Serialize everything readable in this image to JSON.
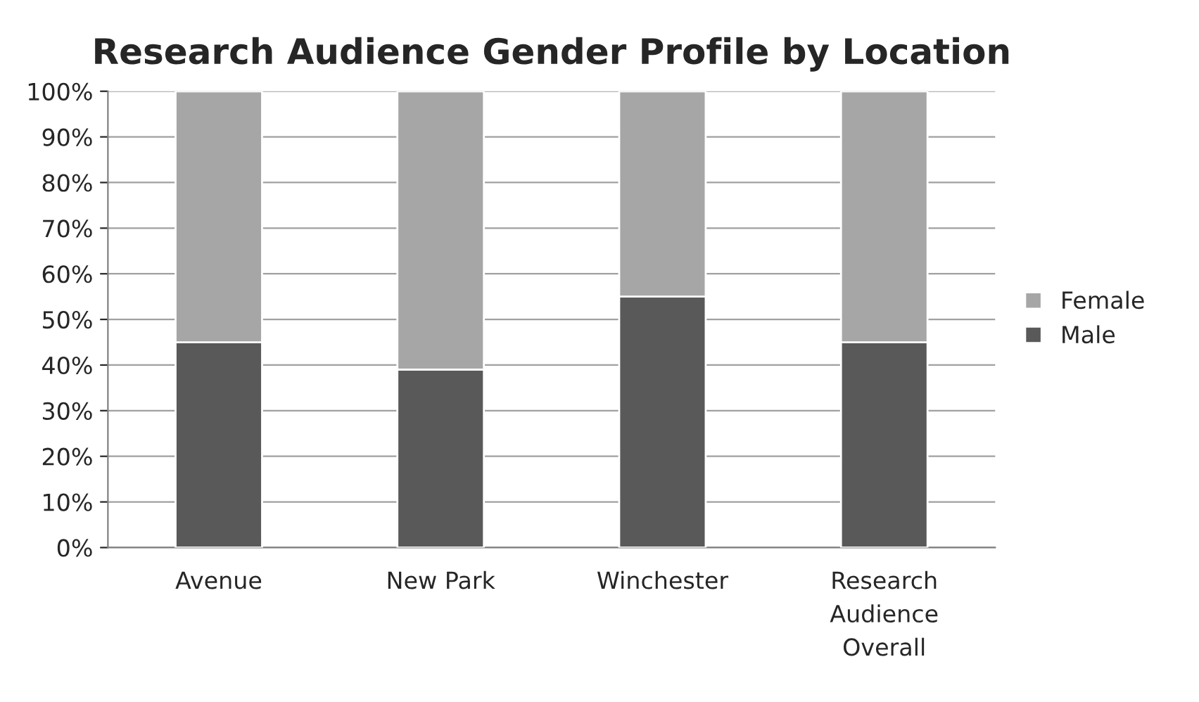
{
  "chart_data": {
    "type": "bar",
    "title": "Research Audience Gender Profile by Location",
    "categories": [
      "Avenue",
      "New Park",
      "Winchester",
      "Research\nAudience\nOverall"
    ],
    "stacked": true,
    "series": [
      {
        "name": "Male",
        "color": "#595959",
        "values": [
          45,
          39,
          55,
          45
        ]
      },
      {
        "name": "Female",
        "color": "#a6a6a6",
        "values": [
          55,
          61,
          45,
          55
        ]
      }
    ],
    "ylim": [
      0,
      100
    ],
    "yticks": [
      {
        "value": 0,
        "label": "0%"
      },
      {
        "value": 10,
        "label": "10%"
      },
      {
        "value": 20,
        "label": "20%"
      },
      {
        "value": 30,
        "label": "30%"
      },
      {
        "value": 40,
        "label": "40%"
      },
      {
        "value": 50,
        "label": "50%"
      },
      {
        "value": 60,
        "label": "60%"
      },
      {
        "value": 70,
        "label": "70%"
      },
      {
        "value": 80,
        "label": "80%"
      },
      {
        "value": 90,
        "label": "90%"
      },
      {
        "value": 100,
        "label": "100%"
      }
    ],
    "grid": "y",
    "legend": "right"
  }
}
